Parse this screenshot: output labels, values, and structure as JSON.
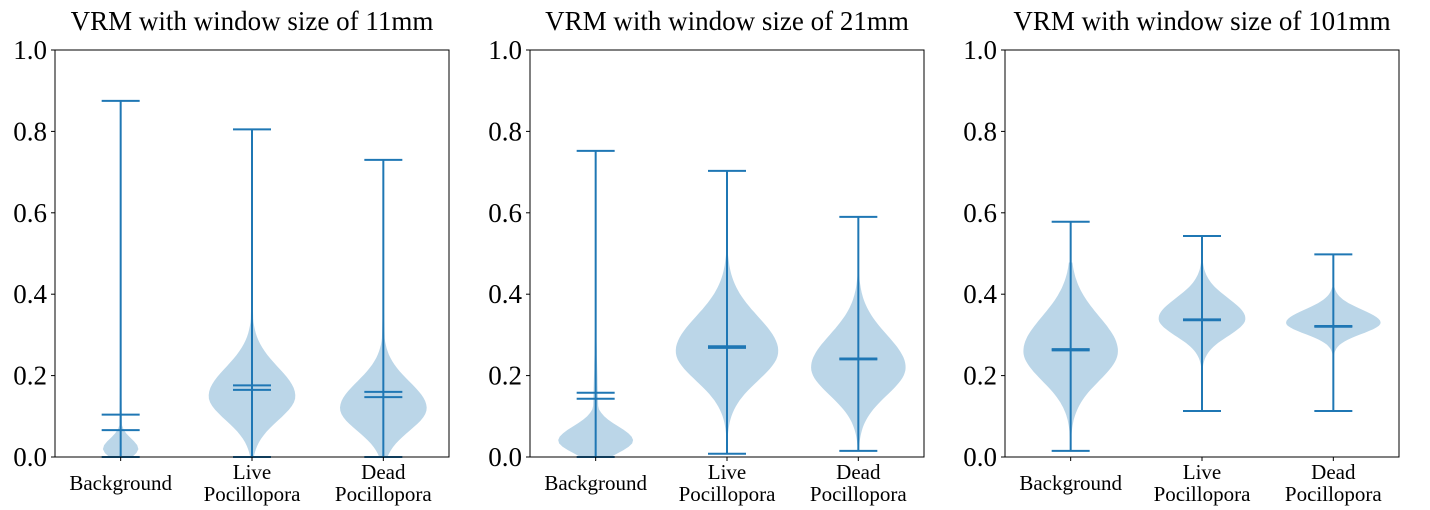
{
  "colors": {
    "body": "#1f77b4",
    "body_opacity": 0.3,
    "line": "#1f77b4"
  },
  "chart_data": [
    {
      "type": "violin",
      "title": "VRM with window size of 11mm",
      "ylim": [
        0,
        1
      ],
      "yticks": [
        "0.0",
        "0.2",
        "0.4",
        "0.6",
        "0.8",
        "1.0"
      ],
      "categories": [
        [
          "Background"
        ],
        [
          "Live",
          "Pocillopora"
        ],
        [
          "Dead",
          "Pocillopora"
        ]
      ],
      "violins": [
        {
          "min": 0.0,
          "max": 0.875,
          "mean": 0.104,
          "median": 0.066,
          "mode": 0.02,
          "spread": 0.025,
          "peak_width": 0.09,
          "tail": 0.36
        },
        {
          "min": 0.0,
          "max": 0.805,
          "mean": 0.176,
          "median": 0.165,
          "mode": 0.15,
          "spread": 0.07,
          "peak_width": 0.22,
          "tail": 0.5
        },
        {
          "min": 0.0,
          "max": 0.73,
          "mean": 0.16,
          "median": 0.147,
          "mode": 0.12,
          "spread": 0.065,
          "peak_width": 0.22,
          "tail": 0.46
        }
      ]
    },
    {
      "type": "violin",
      "title": "VRM with window size of 21mm",
      "ylim": [
        0,
        1
      ],
      "yticks": [
        "0.0",
        "0.2",
        "0.4",
        "0.6",
        "0.8",
        "1.0"
      ],
      "categories": [
        [
          "Background"
        ],
        [
          "Live",
          "Pocillopora"
        ],
        [
          "Dead",
          "Pocillopora"
        ]
      ],
      "violins": [
        {
          "min": 0.0,
          "max": 0.752,
          "mean": 0.158,
          "median": 0.143,
          "mode": 0.04,
          "spread": 0.035,
          "peak_width": 0.19,
          "tail": 0.45
        },
        {
          "min": 0.008,
          "max": 0.703,
          "mean": 0.272,
          "median": 0.268,
          "mode": 0.26,
          "spread": 0.085,
          "peak_width": 0.26,
          "tail": 0.52
        },
        {
          "min": 0.015,
          "max": 0.59,
          "mean": 0.242,
          "median": 0.24,
          "mode": 0.22,
          "spread": 0.08,
          "peak_width": 0.24,
          "tail": 0.48
        }
      ]
    },
    {
      "type": "violin",
      "title": "VRM with window size of 101mm",
      "ylim": [
        0,
        1
      ],
      "yticks": [
        "0.0",
        "0.2",
        "0.4",
        "0.6",
        "0.8",
        "1.0"
      ],
      "categories": [
        [
          "Background"
        ],
        [
          "Live",
          "Pocillopora"
        ],
        [
          "Dead",
          "Pocillopora"
        ]
      ],
      "violins": [
        {
          "min": 0.015,
          "max": 0.578,
          "mean": 0.265,
          "median": 0.262,
          "mode": 0.26,
          "spread": 0.085,
          "peak_width": 0.24,
          "tail": 0.46
        },
        {
          "min": 0.113,
          "max": 0.543,
          "mean": 0.338,
          "median": 0.336,
          "mode": 0.34,
          "spread": 0.05,
          "peak_width": 0.22,
          "tail": 0.48
        },
        {
          "min": 0.113,
          "max": 0.498,
          "mean": 0.322,
          "median": 0.32,
          "mode": 0.33,
          "spread": 0.032,
          "peak_width": 0.24,
          "tail": 0.4
        }
      ]
    }
  ]
}
